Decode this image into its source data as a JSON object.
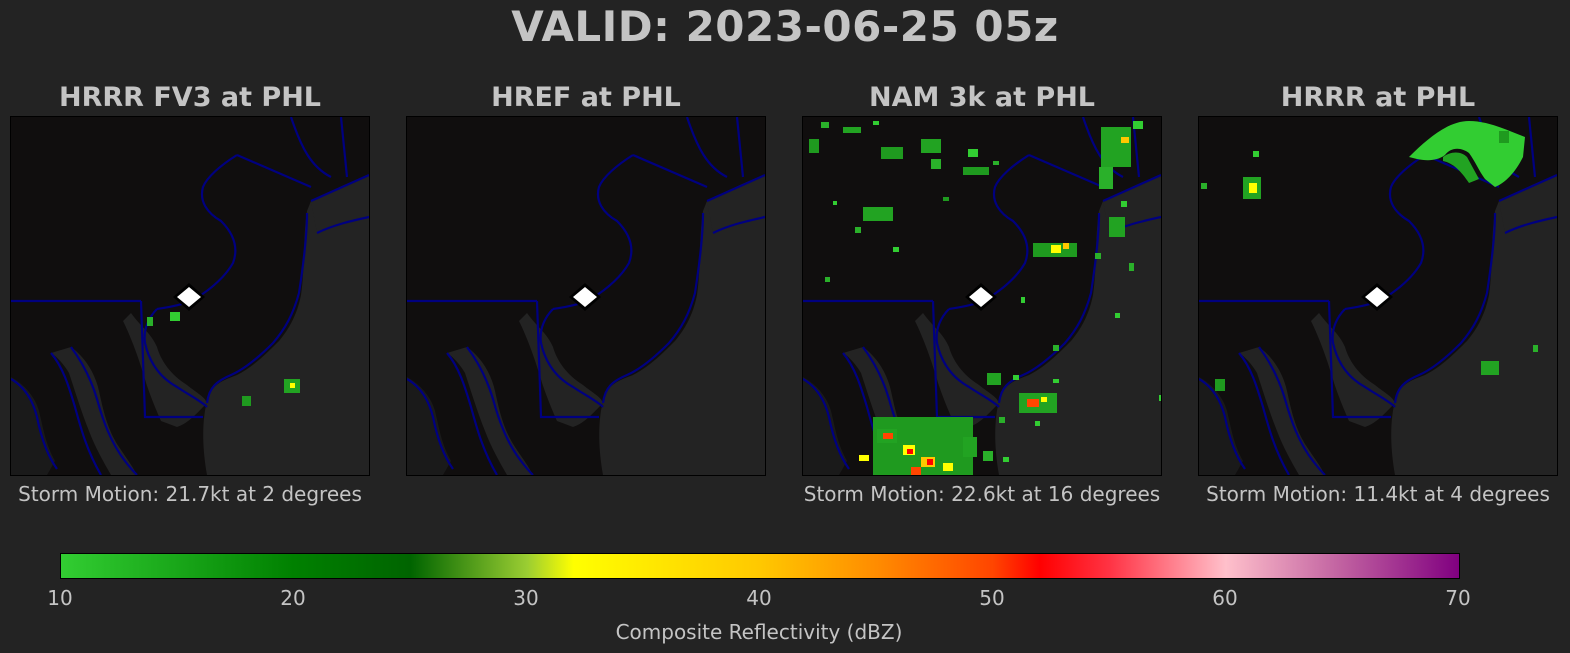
{
  "title": "VALID: 2023-06-25 05z",
  "panels": [
    {
      "title": "HRRR FV3 at PHL",
      "motion": "Storm Motion: 21.7kt at 2 degrees"
    },
    {
      "title": "HREF at PHL",
      "motion": ""
    },
    {
      "title": "NAM 3k at PHL",
      "motion": "Storm Motion: 22.6kt at 16 degrees"
    },
    {
      "title": "HRRR at PHL",
      "motion": "Storm Motion: 11.4kt at 4 degrees"
    }
  ],
  "station_marker": "PHL",
  "colorbar": {
    "label": "Composite Reflectivity (dBZ)",
    "ticks": [
      "10",
      "20",
      "30",
      "40",
      "50",
      "60",
      "70"
    ],
    "range": [
      10,
      70
    ],
    "colors": {
      "10": "#32cd32",
      "20": "#008000",
      "25": "#006400",
      "30": "#9acd32",
      "32": "#ffff00",
      "40": "#ffc800",
      "45": "#ff8c00",
      "50": "#ff4500",
      "52": "#ff0000",
      "55": "#ff3344",
      "60": "#ffc0cb",
      "65": "#c060a0",
      "70": "#800080"
    }
  },
  "colors": {
    "background": "#232323",
    "land": "#100e0e",
    "boundary": "#000080",
    "text": "#c4c4c4"
  }
}
